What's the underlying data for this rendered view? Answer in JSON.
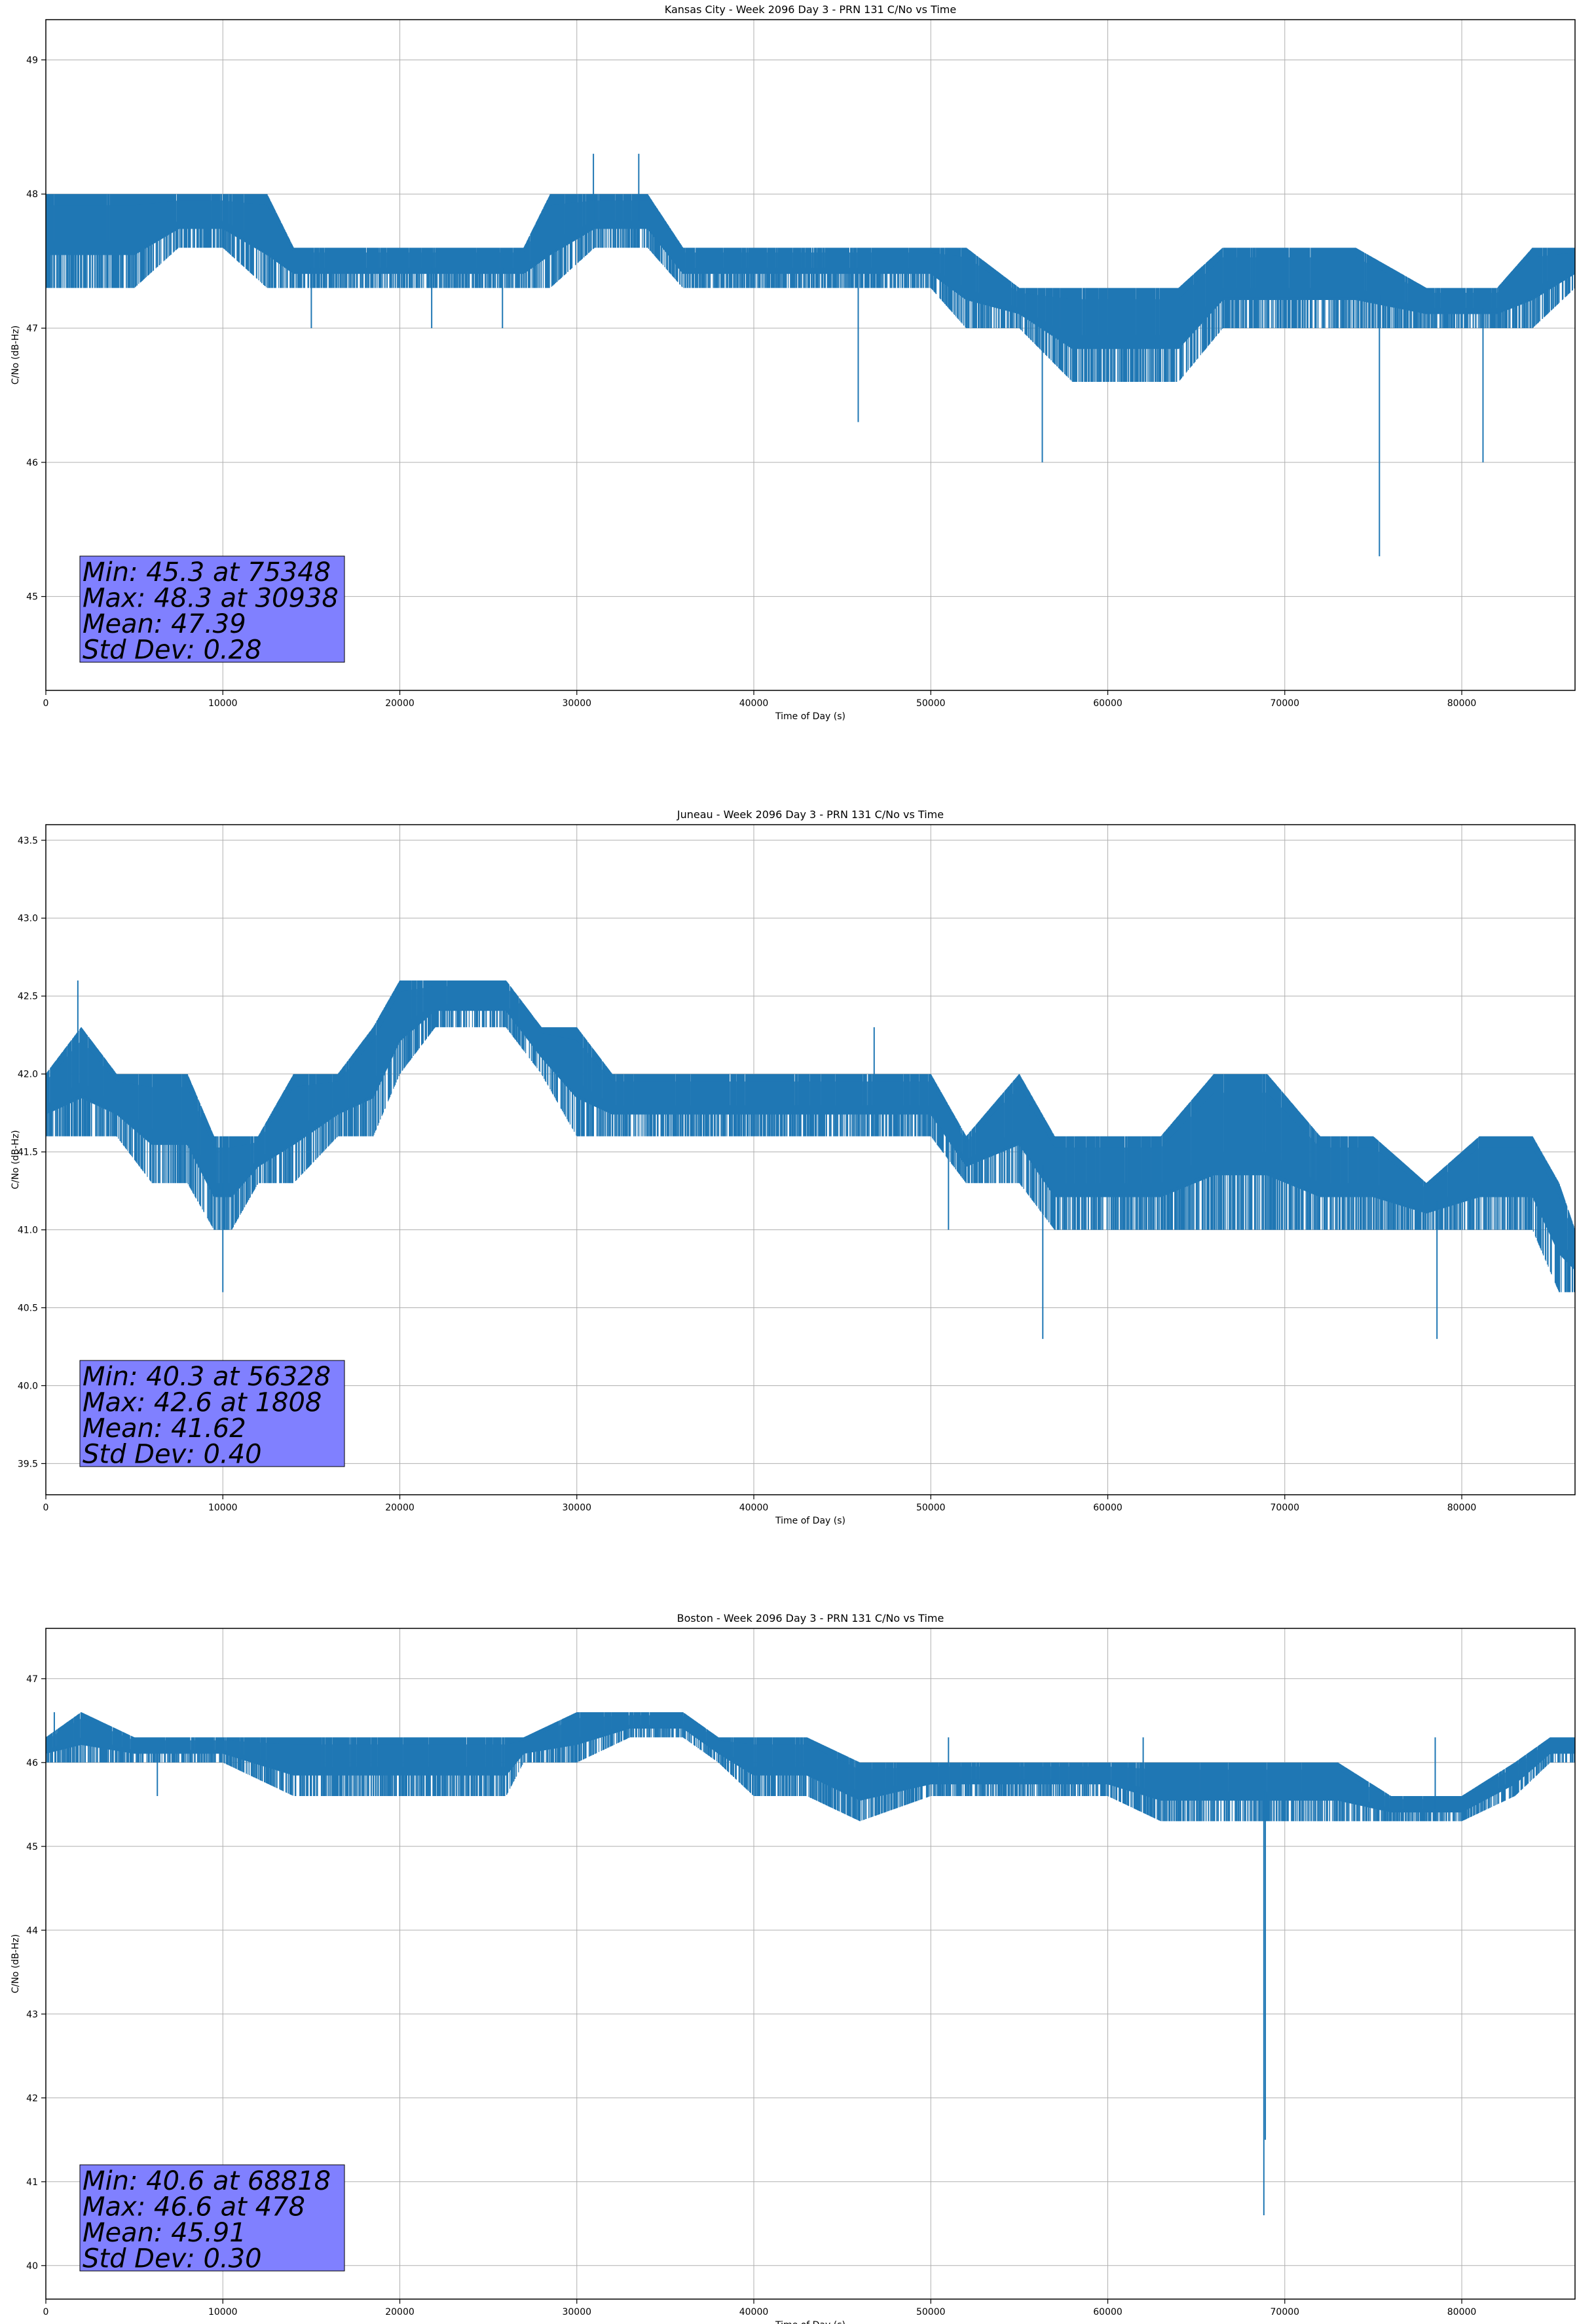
{
  "chart_data": [
    {
      "type": "line",
      "title": "Kansas City - Week 2096 Day 3 - PRN 131 C/No vs Time",
      "xlabel": "Time of Day (s)",
      "ylabel": "C/No (dB-Hz)",
      "xlim": [
        0,
        86400
      ],
      "ylim": [
        44.3,
        49.3
      ],
      "grid": true,
      "xticks": [
        0,
        10000,
        20000,
        30000,
        40000,
        50000,
        60000,
        70000,
        80000
      ],
      "yticks": [
        45,
        46,
        47,
        48,
        49
      ],
      "series": [
        {
          "name": "C/No",
          "color": "#1f77b4",
          "x": [
            0,
            2500,
            5000,
            7500,
            10000,
            12500,
            14000,
            17000,
            22000,
            27000,
            28500,
            31000,
            34000,
            36000,
            40000,
            45000,
            50000,
            52000,
            55000,
            58000,
            61000,
            64000,
            66500,
            70000,
            74000,
            78000,
            82000,
            84000,
            86400
          ],
          "low": [
            47.3,
            47.3,
            47.3,
            47.6,
            47.6,
            47.3,
            47.3,
            47.3,
            47.3,
            47.3,
            47.3,
            47.6,
            47.6,
            47.3,
            47.3,
            47.3,
            47.3,
            47.0,
            47.0,
            46.6,
            46.6,
            46.6,
            47.0,
            47.0,
            47.0,
            47.0,
            47.0,
            47.0,
            47.3
          ],
          "high": [
            48.0,
            48.0,
            48.0,
            48.0,
            48.0,
            48.0,
            47.6,
            47.6,
            47.6,
            47.6,
            48.0,
            48.0,
            48.0,
            47.6,
            47.6,
            47.6,
            47.6,
            47.6,
            47.3,
            47.3,
            47.3,
            47.3,
            47.6,
            47.6,
            47.6,
            47.3,
            47.3,
            47.6,
            47.6
          ]
        }
      ],
      "spikes": [
        [
          30938,
          48.3
        ],
        [
          33500,
          48.3
        ],
        [
          45900,
          46.3
        ],
        [
          56300,
          46.0
        ],
        [
          75348,
          45.3
        ],
        [
          81200,
          46.0
        ],
        [
          15000,
          47.0
        ],
        [
          21800,
          47.0
        ],
        [
          25800,
          47.0
        ]
      ],
      "stats": [
        "Min: 45.3 at 75348",
        "Max: 48.3 at 30938",
        "Mean: 47.39",
        "Std Dev: 0.28"
      ]
    },
    {
      "type": "line",
      "title": "Juneau - Week 2096 Day 3 - PRN 131 C/No vs Time",
      "xlabel": "Time of Day (s)",
      "ylabel": "C/No (dB-Hz)",
      "xlim": [
        0,
        86400
      ],
      "ylim": [
        39.3,
        43.6
      ],
      "grid": true,
      "xticks": [
        0,
        10000,
        20000,
        30000,
        40000,
        50000,
        60000,
        70000,
        80000
      ],
      "yticks": [
        39.5,
        40.0,
        40.5,
        41.0,
        41.5,
        42.0,
        42.5,
        43.0,
        43.5
      ],
      "series": [
        {
          "name": "C/No",
          "color": "#1f77b4",
          "x": [
            0,
            2000,
            4000,
            6000,
            8000,
            9500,
            10500,
            12000,
            14000,
            16500,
            18500,
            20000,
            22000,
            24000,
            26000,
            28000,
            30000,
            32000,
            36000,
            40000,
            45000,
            50000,
            52000,
            55000,
            57000,
            60000,
            63000,
            66000,
            69000,
            72000,
            75000,
            78000,
            81000,
            84000,
            85500,
            86400
          ],
          "low": [
            41.6,
            41.6,
            41.6,
            41.3,
            41.3,
            41.0,
            41.0,
            41.3,
            41.3,
            41.6,
            41.6,
            42.0,
            42.3,
            42.3,
            42.3,
            42.0,
            41.6,
            41.6,
            41.6,
            41.6,
            41.6,
            41.6,
            41.3,
            41.3,
            41.0,
            41.0,
            41.0,
            41.0,
            41.0,
            41.0,
            41.0,
            41.0,
            41.0,
            41.0,
            40.6,
            40.6
          ],
          "high": [
            42.0,
            42.3,
            42.0,
            42.0,
            42.0,
            41.6,
            41.6,
            41.6,
            42.0,
            42.0,
            42.3,
            42.6,
            42.6,
            42.6,
            42.6,
            42.3,
            42.3,
            42.0,
            42.0,
            42.0,
            42.0,
            42.0,
            41.6,
            42.0,
            41.6,
            41.6,
            41.6,
            42.0,
            42.0,
            41.6,
            41.6,
            41.3,
            41.6,
            41.6,
            41.3,
            41.0
          ]
        }
      ],
      "spikes": [
        [
          1808,
          42.6
        ],
        [
          10000,
          40.6
        ],
        [
          46800,
          42.3
        ],
        [
          56328,
          40.3
        ],
        [
          78600,
          40.3
        ],
        [
          51000,
          41.0
        ]
      ],
      "stats": [
        "Min: 40.3 at 56328",
        "Max: 42.6 at 1808",
        "Mean: 41.62",
        "Std Dev: 0.40"
      ]
    },
    {
      "type": "line",
      "title": "Boston - Week 2096 Day 3 - PRN 131 C/No vs Time",
      "xlabel": "Time of Day (s)",
      "ylabel": "C/No (dB-Hz)",
      "xlim": [
        0,
        86400
      ],
      "ylim": [
        39.6,
        47.6
      ],
      "grid": true,
      "xticks": [
        0,
        10000,
        20000,
        30000,
        40000,
        50000,
        60000,
        70000,
        80000
      ],
      "yticks": [
        40,
        41,
        42,
        43,
        44,
        45,
        46,
        47
      ],
      "series": [
        {
          "name": "C/No",
          "color": "#1f77b4",
          "x": [
            0,
            2000,
            5000,
            8000,
            10000,
            14000,
            18000,
            22000,
            26000,
            27000,
            30000,
            33000,
            36000,
            38000,
            40000,
            43000,
            46000,
            50000,
            55000,
            60000,
            63000,
            66000,
            70000,
            73000,
            76000,
            80000,
            83000,
            85000,
            86400
          ],
          "low": [
            46.0,
            46.0,
            46.0,
            46.0,
            46.0,
            45.6,
            45.6,
            45.6,
            45.6,
            46.0,
            46.0,
            46.3,
            46.3,
            46.0,
            45.6,
            45.6,
            45.3,
            45.6,
            45.6,
            45.6,
            45.3,
            45.3,
            45.3,
            45.3,
            45.3,
            45.3,
            45.6,
            46.0,
            46.0
          ],
          "high": [
            46.3,
            46.6,
            46.3,
            46.3,
            46.3,
            46.3,
            46.3,
            46.3,
            46.3,
            46.3,
            46.6,
            46.6,
            46.6,
            46.3,
            46.3,
            46.3,
            46.0,
            46.0,
            46.0,
            46.0,
            46.0,
            46.0,
            46.0,
            46.0,
            45.6,
            45.6,
            46.0,
            46.3,
            46.3
          ]
        }
      ],
      "spikes": [
        [
          478,
          46.6
        ],
        [
          68818,
          40.6
        ],
        [
          68900,
          41.5
        ],
        [
          6300,
          45.6
        ],
        [
          51000,
          46.3
        ],
        [
          62000,
          46.3
        ],
        [
          78500,
          46.3
        ]
      ],
      "stats": [
        "Min: 40.6 at 68818",
        "Max: 46.6 at 478",
        "Mean: 45.91",
        "Std Dev: 0.30"
      ]
    }
  ]
}
